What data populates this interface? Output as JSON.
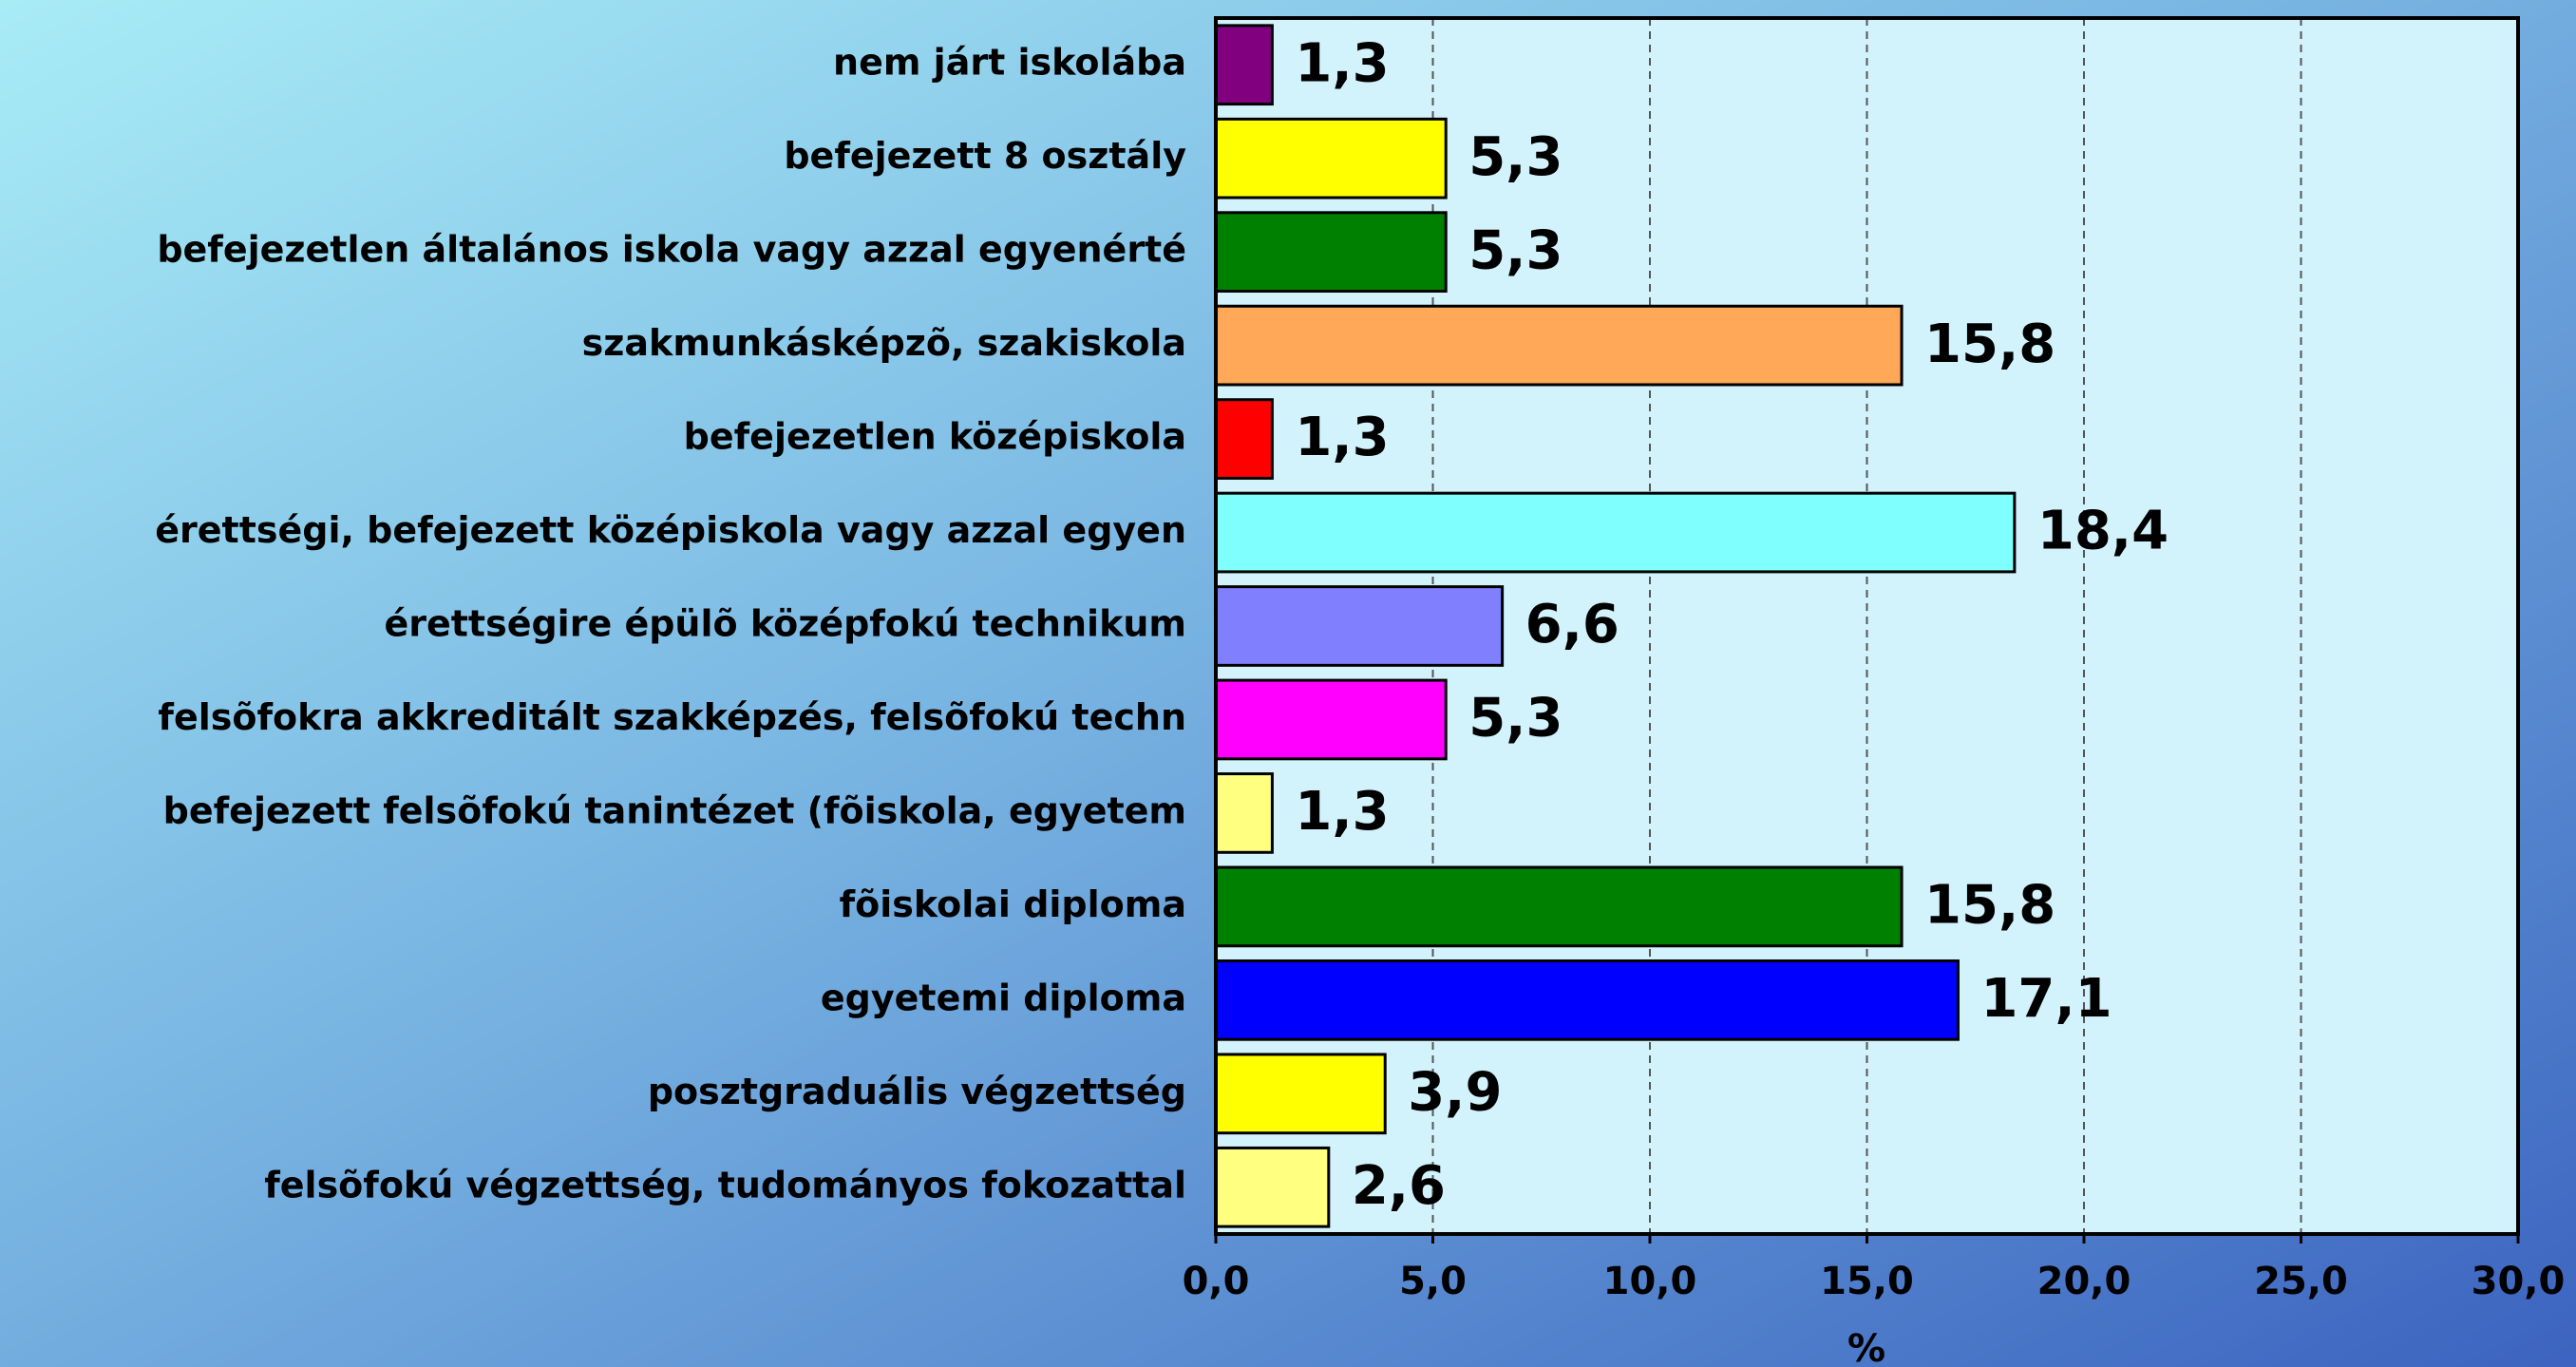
{
  "chart_data": {
    "type": "bar",
    "orientation": "horizontal",
    "categories": [
      "nem járt iskolába",
      "befejezett 8 osztály",
      "befejezetlen általános iskola vagy azzal egyenérté",
      "szakmunkásképzõ, szakiskola",
      "befejezetlen középiskola",
      "érettségi, befejezett középiskola vagy azzal egyen",
      "érettségire épülõ középfokú technikum",
      "felsõfokra akkreditált szakképzés, felsõfokú techn",
      "befejezett felsõfokú tanintézet (fõiskola, egyetem",
      "fõiskolai diploma",
      "egyetemi diploma",
      "posztgraduális végzettség",
      "felsõfokú végzettség, tudományos fokozattal"
    ],
    "values": [
      1.3,
      5.3,
      5.3,
      15.8,
      1.3,
      18.4,
      6.6,
      5.3,
      1.3,
      15.8,
      17.1,
      3.9,
      2.6
    ],
    "value_labels": [
      "1,3",
      "5,3",
      "5,3",
      "15,8",
      "1,3",
      "18,4",
      "6,6",
      "5,3",
      "1,3",
      "15,8",
      "17,1",
      "3,9",
      "2,6"
    ],
    "colors": [
      "#800080",
      "#ffff00",
      "#008000",
      "#ffa858",
      "#ff0000",
      "#80ffff",
      "#8080ff",
      "#ff00ff",
      "#ffff80",
      "#008000",
      "#0000ff",
      "#ffff00",
      "#ffff80"
    ],
    "xlabel": "%",
    "xlim": [
      0,
      30
    ],
    "xticks": [
      {
        "value": 0,
        "label": "0,0"
      },
      {
        "value": 5,
        "label": "5,0"
      },
      {
        "value": 10,
        "label": "10,0"
      },
      {
        "value": 15,
        "label": "15,0"
      },
      {
        "value": 20,
        "label": "20,0"
      },
      {
        "value": 25,
        "label": "25,0"
      },
      {
        "value": 30,
        "label": "30,0"
      }
    ],
    "grid": true
  }
}
